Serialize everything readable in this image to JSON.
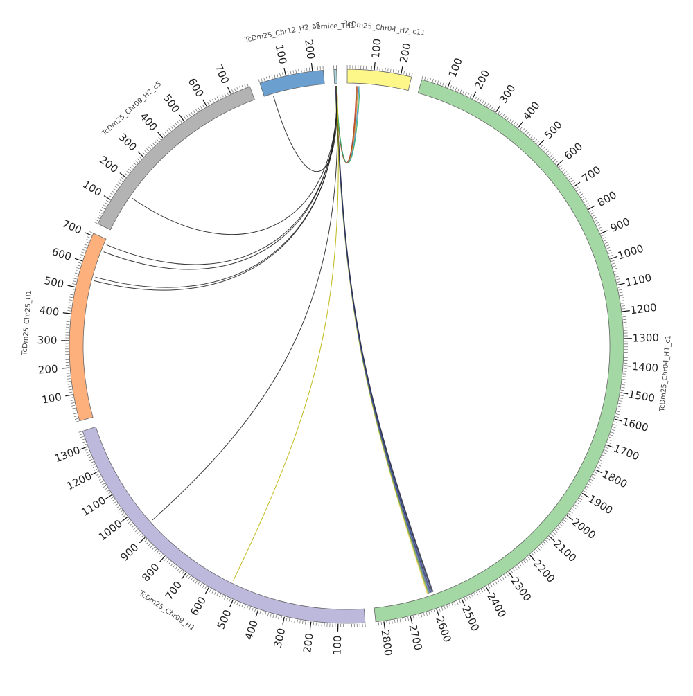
{
  "diagram": {
    "type": "circos",
    "colors": {
      "stroke": "#666666",
      "tick": "#777777",
      "label": "#444444",
      "tick_label": "#222222",
      "link_default": "#222222"
    },
    "tick_minor_step": 10,
    "tick_major_step": 100,
    "segments": [
      {
        "id": "chr04_h2_c11",
        "label": "TcDm25_Chr04_H2_c11",
        "length": 240,
        "color": "#fdf78a",
        "ticks": [
          100,
          200
        ]
      },
      {
        "id": "chr04_h1_c1",
        "label": "TcDm25_Chr04_H1_c1",
        "length": 2830,
        "color": "#a3d7a3",
        "ticks": [
          100,
          200,
          300,
          400,
          500,
          600,
          700,
          800,
          900,
          1000,
          1100,
          1200,
          1300,
          1400,
          1500,
          1600,
          1700,
          1800,
          1900,
          2000,
          2100,
          2200,
          2300,
          2400,
          2500,
          2600,
          2700,
          2800
        ]
      },
      {
        "id": "chr09_h1",
        "label": "TcDm25_Chr09_H1",
        "length": 1360,
        "color": "#bdb9dc",
        "ticks": [
          100,
          200,
          300,
          400,
          500,
          600,
          700,
          800,
          900,
          1000,
          1100,
          1200,
          1300
        ]
      },
      {
        "id": "chr25_h1",
        "label": "TcDm25_Chr25_H1",
        "length": 710,
        "color": "#fdb07b",
        "ticks": [
          100,
          200,
          300,
          400,
          500,
          600,
          700
        ]
      },
      {
        "id": "chr09_h2_c5",
        "label": "TcDm25_Chr09_H2_c5",
        "length": 775,
        "color": "#b3b3b3",
        "ticks": [
          100,
          200,
          300,
          400,
          500,
          600,
          700
        ]
      },
      {
        "id": "chr12_h2_c8",
        "label": "TcDm25_Chr12_H2_c8",
        "length": 240,
        "color": "#6b9fcf",
        "ticks": [
          100,
          200
        ]
      },
      {
        "id": "bernice",
        "label": "bernice_TH1",
        "length": 10,
        "color": "#a9d6df",
        "ticks": []
      }
    ],
    "links": [
      {
        "from": [
          "bernice",
          2
        ],
        "to": [
          "chr04_h1_c1",
          2615
        ],
        "color": "#ffd24d"
      },
      {
        "from": [
          "bernice",
          2
        ],
        "to": [
          "chr04_h1_c1",
          2612
        ],
        "color": "#8ab84a"
      },
      {
        "from": [
          "bernice",
          3
        ],
        "to": [
          "chr04_h1_c1",
          2609
        ],
        "color": "#5a8a3a"
      },
      {
        "from": [
          "bernice",
          3
        ],
        "to": [
          "chr04_h1_c1",
          2606
        ],
        "color": "#6a7ab0"
      },
      {
        "from": [
          "bernice",
          4
        ],
        "to": [
          "chr04_h1_c1",
          2603
        ],
        "color": "#3a4a8a"
      },
      {
        "from": [
          "bernice",
          4
        ],
        "to": [
          "chr04_h1_c1",
          2600
        ],
        "color": "#2d2d6d"
      },
      {
        "from": [
          "bernice",
          5
        ],
        "to": [
          "chr04_h1_c1",
          2597
        ],
        "color": "#4a6aa8"
      },
      {
        "from": [
          "bernice",
          5
        ],
        "to": [
          "chr04_h1_c1",
          2594
        ],
        "color": "#222222"
      },
      {
        "from": [
          "bernice",
          6
        ],
        "to": [
          "chr04_h1_c1",
          2591
        ],
        "color": "#333355"
      },
      {
        "from": [
          "bernice",
          6
        ],
        "to": [
          "chr04_h2_c11",
          36
        ],
        "color": "#c0392b"
      },
      {
        "from": [
          "bernice",
          6
        ],
        "to": [
          "chr04_h2_c11",
          39
        ],
        "color": "#8b4513"
      },
      {
        "from": [
          "bernice",
          7
        ],
        "to": [
          "chr04_h2_c11",
          42
        ],
        "color": "#e67e22"
      },
      {
        "from": [
          "bernice",
          7
        ],
        "to": [
          "chr04_h2_c11",
          46
        ],
        "color": "#2e86c1"
      },
      {
        "from": [
          "bernice",
          7
        ],
        "to": [
          "chr04_h2_c11",
          50
        ],
        "color": "#27ae60"
      },
      {
        "from": [
          "bernice",
          8
        ],
        "to": [
          "chr09_h2_c5",
          150
        ],
        "color": "#222222"
      },
      {
        "from": [
          "bernice",
          8
        ],
        "to": [
          "chr25_h1",
          690
        ],
        "color": "#222222"
      },
      {
        "from": [
          "bernice",
          8
        ],
        "to": [
          "chr25_h1",
          660
        ],
        "color": "#222222"
      },
      {
        "from": [
          "bernice",
          8
        ],
        "to": [
          "chr25_h1",
          555
        ],
        "color": "#222222"
      },
      {
        "from": [
          "bernice",
          8
        ],
        "to": [
          "chr25_h1",
          540
        ],
        "color": "#222222"
      },
      {
        "from": [
          "bernice",
          9
        ],
        "to": [
          "chr12_h2_c8",
          35
        ],
        "color": "#222222"
      },
      {
        "from": [
          "bernice",
          9
        ],
        "to": [
          "chr09_h1",
          930
        ],
        "color": "#222222"
      },
      {
        "from": [
          "bernice",
          9
        ],
        "to": [
          "chr09_h1",
          530
        ],
        "color": "#b8b300"
      }
    ]
  }
}
